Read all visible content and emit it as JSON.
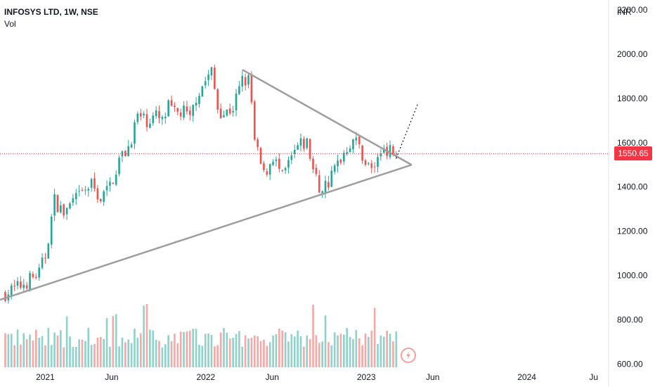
{
  "legend": {
    "symbol": "INFOSYS LTD, 1W, NSE",
    "indicator": "Vol"
  },
  "price_axis": {
    "currency": "INR",
    "last_price": "1550.65"
  },
  "colors": {
    "up": "#26a69a",
    "down": "#ef5350",
    "volume_up": "#8fd2c9",
    "volume_down": "#f5a8a5",
    "last_price_line": "#f23645",
    "trendline": "#9e9e9e",
    "projection": "#131722"
  },
  "chart_data": {
    "type": "candlestick",
    "interval": "1W",
    "yaxis": {
      "ticks": [
        "2200.00",
        "2000.00",
        "1800.00",
        "1600.00",
        "1400.00",
        "1200.00",
        "1000.00",
        "800.00",
        "600.00"
      ],
      "tick_values": [
        2200,
        2000,
        1800,
        1600,
        1400,
        1200,
        1000,
        800,
        600
      ],
      "ylim": [
        585,
        2245
      ]
    },
    "xaxis": {
      "ticks": [
        "2021",
        "Jun",
        "2022",
        "Jun",
        "2023",
        "Jun",
        "2024",
        "Ju"
      ],
      "tick_dates": [
        "2021-01-01",
        "2021-06-01",
        "2022-01-01",
        "2022-06-01",
        "2023-01-01",
        "2023-06-01",
        "2024-01-01",
        "2024-06-01"
      ],
      "xlim": [
        "2020-09-20",
        "2024-07-05"
      ]
    },
    "price_path": [
      [
        "2020-10-02",
        920
      ],
      [
        "2020-10-30",
        945
      ],
      [
        "2020-12-18",
        1010
      ],
      [
        "2021-01-01",
        1090
      ],
      [
        "2021-01-22",
        1340
      ],
      [
        "2021-02-12",
        1280
      ],
      [
        "2021-03-05",
        1330
      ],
      [
        "2021-03-26",
        1370
      ],
      [
        "2021-04-16",
        1410
      ],
      [
        "2021-05-07",
        1345
      ],
      [
        "2021-05-28",
        1405
      ],
      [
        "2021-06-18",
        1520
      ],
      [
        "2021-07-09",
        1580
      ],
      [
        "2021-07-30",
        1720
      ],
      [
        "2021-08-20",
        1700
      ],
      [
        "2021-09-10",
        1720
      ],
      [
        "2021-09-24",
        1690
      ],
      [
        "2021-10-08",
        1760
      ],
      [
        "2021-10-22",
        1730
      ],
      [
        "2021-11-12",
        1740
      ],
      [
        "2021-11-26",
        1700
      ],
      [
        "2021-12-10",
        1810
      ],
      [
        "2021-12-31",
        1880
      ],
      [
        "2022-01-14",
        1920
      ],
      [
        "2022-01-28",
        1760
      ],
      [
        "2022-02-11",
        1730
      ],
      [
        "2022-03-04",
        1760
      ],
      [
        "2022-03-25",
        1880
      ],
      [
        "2022-04-08",
        1880
      ],
      [
        "2022-04-15",
        1780
      ],
      [
        "2022-04-22",
        1600
      ],
      [
        "2022-05-13",
        1450
      ],
      [
        "2022-06-03",
        1540
      ],
      [
        "2022-06-24",
        1440
      ],
      [
        "2022-07-08",
        1500
      ],
      [
        "2022-07-29",
        1580
      ],
      [
        "2022-08-19",
        1600
      ],
      [
        "2022-09-02",
        1480
      ],
      [
        "2022-09-16",
        1390
      ],
      [
        "2022-10-07",
        1420
      ],
      [
        "2022-10-28",
        1510
      ],
      [
        "2022-11-18",
        1580
      ],
      [
        "2022-12-02",
        1620
      ],
      [
        "2022-12-16",
        1580
      ],
      [
        "2022-12-30",
        1510
      ],
      [
        "2023-01-13",
        1480
      ],
      [
        "2023-01-27",
        1520
      ],
      [
        "2023-02-10",
        1590
      ],
      [
        "2023-02-24",
        1560
      ],
      [
        "2023-03-10",
        1550.65
      ]
    ],
    "volume_base": [
      80,
      28,
      22
    ],
    "last_close": 1550.65,
    "drawings": {
      "upper_trendline": [
        [
          "2022-03-25",
          1930
        ],
        [
          "2023-04-14",
          1500
        ]
      ],
      "lower_trendline": [
        [
          "2020-09-20",
          890
        ],
        [
          "2023-04-14",
          1500
        ]
      ],
      "projection": [
        [
          "2023-03-10",
          1530
        ],
        [
          "2023-04-28",
          1775
        ]
      ]
    }
  }
}
